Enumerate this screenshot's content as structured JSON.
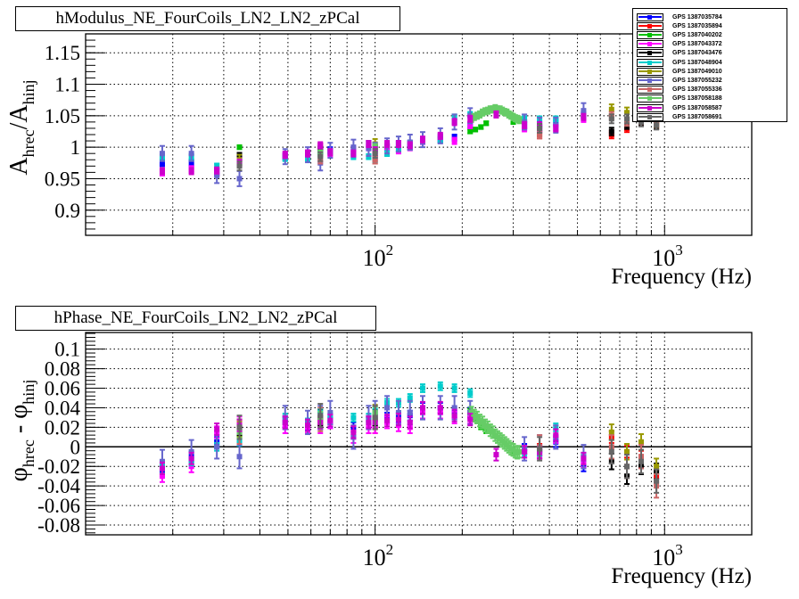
{
  "chart_data": [
    {
      "type": "scatter",
      "title": "hModulus_NE_FourCoils_LN2_LN2_zPCal",
      "xlabel": "Frequency (Hz)",
      "ylabel": "A_hrec/A_hinj",
      "ylabel_parts": {
        "main": "A",
        "sub1": "hrec",
        "slash": "/A",
        "sub2": "hinj"
      },
      "xscale": "log",
      "xlim": [
        10,
        2000
      ],
      "ylim": [
        0.86,
        1.18
      ],
      "yticks": [
        0.9,
        0.95,
        1,
        1.05,
        1.1,
        1.15
      ],
      "ytick_labels": [
        "0.9",
        "0.95",
        "1",
        "1.05",
        "1.1",
        "1.15"
      ],
      "xtick_labels": [
        {
          "value": 100,
          "base": "10",
          "exp": "2"
        },
        {
          "value": 1000,
          "base": "10",
          "exp": "3"
        }
      ],
      "grid": true,
      "key": "m"
    },
    {
      "type": "scatter",
      "title": "hPhase_NE_FourCoils_LN2_LN2_zPCal",
      "xlabel": "Frequency (Hz)",
      "ylabel": "φ_hrec - φ_hinj",
      "ylabel_parts": {
        "main": "φ",
        "sub1": "hrec",
        "slash": " - φ",
        "sub2": "hinj"
      },
      "xscale": "log",
      "xlim": [
        10,
        2000
      ],
      "ylim": [
        -0.09,
        0.117
      ],
      "yticks": [
        -0.08,
        -0.06,
        -0.04,
        -0.02,
        0,
        0.02,
        0.04,
        0.06,
        0.08,
        0.1
      ],
      "ytick_labels": [
        "-0.08",
        "-0.06",
        "-0.04",
        "-0.02",
        "0",
        "0.02",
        "0.04",
        "0.06",
        "0.08",
        "0.1"
      ],
      "xtick_labels": [
        {
          "value": 100,
          "base": "10",
          "exp": "2"
        },
        {
          "value": 1000,
          "base": "10",
          "exp": "3"
        }
      ],
      "grid": true,
      "zero_line": true,
      "key": "p"
    }
  ],
  "legend": {
    "placement": "top-right",
    "series_names": [
      "GPS 1387035784",
      "GPS 1387035894",
      "GPS 1387040202",
      "GPS 1387043372",
      "GPS 1387043476",
      "GPS 1387048904",
      "GPS 1387049010",
      "GPS 1387055232",
      "GPS 1387055336",
      "GPS 1387058188",
      "GPS 1387058587",
      "GPS 1387058691"
    ]
  },
  "series": [
    {
      "name": "GPS 1387035784",
      "color": "#0000ff",
      "err_m": 0.005,
      "err_p": 0.005,
      "points": [
        [
          18.4,
          0.975,
          -0.025
        ],
        [
          23.2,
          0.975,
          -0.01
        ],
        [
          28.4,
          0.96,
          0.005
        ],
        [
          34,
          0.985,
          0.01
        ],
        [
          48.9,
          0.985,
          0.025
        ],
        [
          58.5,
          0.99,
          0.022
        ],
        [
          64.7,
          0.99,
          0.03
        ],
        [
          70,
          0.995,
          0.025
        ],
        [
          84.2,
          0.99,
          0.02
        ],
        [
          95,
          1.005,
          0.025
        ],
        [
          100,
          0.99,
          0.028
        ],
        [
          110,
          1.0,
          0.03
        ],
        [
          120.5,
          1.005,
          0.03
        ],
        [
          132,
          1.005,
          0.032
        ],
        [
          146,
          1.01,
          0.04
        ],
        [
          168,
          1.012,
          0.04
        ],
        [
          188,
          1.015,
          0.035
        ],
        [
          213,
          1.035,
          0.035
        ],
        [
          328,
          1.035,
          -0.002
        ],
        [
          370,
          1.03,
          -0.004
        ],
        [
          421,
          1.04,
          0.005
        ],
        [
          525,
          1.05,
          -0.02
        ]
      ]
    },
    {
      "name": "GPS 1387035894",
      "color": "#ff0000",
      "err_m": 0.006,
      "err_p": 0.006,
      "points": [
        [
          64.7,
          1.0,
          0.025
        ],
        [
          100,
          0.98,
          0.02
        ],
        [
          370,
          1.02,
          -0.003
        ],
        [
          656,
          1.02,
          0.01
        ],
        [
          741,
          1.03,
          -0.005
        ],
        [
          830,
          1.04,
          -0.01
        ],
        [
          937,
          1.035,
          -0.03
        ]
      ]
    },
    {
      "name": "GPS 1387040202",
      "color": "#00c000",
      "err_m": 0.003,
      "err_p": 0.004,
      "points": [
        [
          34,
          1.0,
          0.015
        ],
        [
          64.7,
          0.995,
          0.025
        ],
        [
          100,
          1.0,
          0.025
        ],
        [
          213,
          1.025,
          0.035
        ],
        [
          222,
          1.028,
          0.03
        ],
        [
          232,
          1.032,
          0.022
        ],
        [
          242,
          1.038,
          0.018
        ],
        [
          300,
          1.04,
          -0.005
        ]
      ]
    },
    {
      "name": "GPS 1387043372",
      "color": "#ff00ff",
      "err_m": 0.005,
      "err_p": 0.006,
      "points": [
        [
          18.4,
          0.96,
          -0.03
        ],
        [
          23.2,
          0.965,
          -0.02
        ],
        [
          28.4,
          0.96,
          0.015
        ],
        [
          34,
          0.98,
          0.025
        ],
        [
          48.9,
          0.985,
          0.02
        ],
        [
          58.5,
          0.99,
          0.02
        ],
        [
          64.7,
          1.0,
          0.02
        ],
        [
          70,
          0.99,
          0.025
        ],
        [
          84.2,
          0.995,
          0.01
        ],
        [
          95,
          1.0,
          0.02
        ],
        [
          100,
          0.985,
          0.02
        ],
        [
          110,
          1.0,
          0.025
        ],
        [
          120.5,
          0.995,
          0.022
        ],
        [
          132,
          1.0,
          0.02
        ],
        [
          146,
          1.01,
          0.035
        ],
        [
          168,
          1.015,
          0.035
        ],
        [
          188,
          1.01,
          0.03
        ],
        [
          213,
          1.035,
          0.03
        ],
        [
          328,
          1.03,
          -0.005
        ],
        [
          370,
          1.03,
          -0.005
        ],
        [
          421,
          1.03,
          0.01
        ],
        [
          525,
          1.045,
          -0.015
        ]
      ]
    },
    {
      "name": "GPS 1387043476",
      "color": "#000000",
      "err_m": 0.006,
      "err_p": 0.008,
      "points": [
        [
          34,
          0.985,
          0.02
        ],
        [
          64.7,
          0.995,
          0.03
        ],
        [
          100,
          1.0,
          0.03
        ],
        [
          656,
          1.025,
          -0.015
        ],
        [
          741,
          1.035,
          -0.03
        ],
        [
          830,
          1.04,
          -0.02
        ],
        [
          937,
          1.035,
          -0.025
        ]
      ]
    },
    {
      "name": "GPS 1387048904",
      "color": "#00cccc",
      "err_m": 0.004,
      "err_p": 0.004,
      "points": [
        [
          18.4,
          0.985,
          -0.02
        ],
        [
          23.2,
          0.985,
          -0.015
        ],
        [
          28.4,
          0.97,
          0.0
        ],
        [
          34,
          0.975,
          0.005
        ],
        [
          48.9,
          0.982,
          0.03
        ],
        [
          58.5,
          0.982,
          0.025
        ],
        [
          64.7,
          0.99,
          0.035
        ],
        [
          70,
          0.993,
          0.03
        ],
        [
          84.2,
          0.985,
          0.03
        ],
        [
          95,
          0.985,
          0.03
        ],
        [
          100,
          0.98,
          0.035
        ],
        [
          110,
          0.99,
          0.045
        ],
        [
          120.5,
          0.997,
          0.045
        ],
        [
          132,
          1.0,
          0.05
        ],
        [
          146,
          1.01,
          0.06
        ],
        [
          168,
          1.012,
          0.062
        ],
        [
          188,
          1.048,
          0.06
        ],
        [
          213,
          1.052,
          0.055
        ],
        [
          328,
          1.045,
          -0.005
        ],
        [
          370,
          1.045,
          -0.005
        ],
        [
          421,
          1.045,
          0.02
        ],
        [
          525,
          1.052,
          -0.01
        ]
      ]
    },
    {
      "name": "GPS 1387049010",
      "color": "#999900",
      "err_m": 0.008,
      "err_p": 0.008,
      "points": [
        [
          34,
          0.98,
          0.018
        ],
        [
          100,
          1.005,
          0.035
        ],
        [
          656,
          1.06,
          0.015
        ],
        [
          741,
          1.055,
          -0.005
        ],
        [
          830,
          1.05,
          0.005
        ],
        [
          937,
          1.04,
          -0.02
        ]
      ]
    },
    {
      "name": "GPS 1387055232",
      "color": "#6666cc",
      "err_m": 0.012,
      "err_p": 0.012,
      "points": [
        [
          18.4,
          0.99,
          -0.015
        ],
        [
          23.2,
          0.99,
          -0.005
        ],
        [
          28.4,
          0.955,
          0.0
        ],
        [
          34,
          0.95,
          -0.01
        ],
        [
          48.9,
          0.985,
          0.03
        ],
        [
          58.5,
          0.988,
          0.025
        ],
        [
          64.7,
          0.975,
          0.03
        ],
        [
          70,
          0.995,
          0.035
        ],
        [
          84.2,
          1.0,
          0.01
        ],
        [
          95,
          0.998,
          0.03
        ],
        [
          100,
          0.995,
          0.035
        ],
        [
          110,
          1.002,
          0.04
        ],
        [
          120.5,
          1.005,
          0.035
        ],
        [
          132,
          1.008,
          0.035
        ],
        [
          146,
          1.012,
          0.04
        ],
        [
          168,
          1.018,
          0.04
        ],
        [
          188,
          1.04,
          0.04
        ],
        [
          213,
          1.05,
          0.035
        ],
        [
          328,
          1.04,
          -0.002
        ],
        [
          370,
          1.035,
          0.0
        ],
        [
          421,
          1.035,
          0.01
        ],
        [
          525,
          1.058,
          -0.01
        ]
      ]
    },
    {
      "name": "GPS 1387055336",
      "color": "#cc6666",
      "err_m": 0.006,
      "err_p": 0.012,
      "points": [
        [
          34,
          0.975,
          0.015
        ],
        [
          64.7,
          0.98,
          0.028
        ],
        [
          100,
          0.98,
          0.03
        ],
        [
          370,
          1.02,
          0.0
        ],
        [
          656,
          1.05,
          0.0
        ],
        [
          741,
          1.04,
          -0.02
        ],
        [
          830,
          1.045,
          -0.01
        ],
        [
          937,
          1.04,
          -0.04
        ]
      ]
    },
    {
      "name": "GPS 1387058188",
      "color": "#66cc66",
      "err_m": 0.005,
      "err_p": 0.006,
      "points": [
        [
          34,
          0.975,
          0.015
        ],
        [
          64.7,
          0.99,
          0.03
        ],
        [
          100,
          1.0,
          0.035
        ],
        [
          215,
          1.045,
          0.035
        ],
        [
          220,
          1.048,
          0.032
        ],
        [
          225,
          1.05,
          0.03
        ],
        [
          230,
          1.052,
          0.027
        ],
        [
          235,
          1.055,
          0.025
        ],
        [
          240,
          1.057,
          0.022
        ],
        [
          245,
          1.058,
          0.02
        ],
        [
          250,
          1.06,
          0.017
        ],
        [
          255,
          1.06,
          0.015
        ],
        [
          260,
          1.062,
          0.012
        ],
        [
          265,
          1.06,
          0.01
        ],
        [
          270,
          1.06,
          0.008
        ],
        [
          275,
          1.058,
          0.006
        ],
        [
          280,
          1.056,
          0.004
        ],
        [
          285,
          1.055,
          0.002
        ],
        [
          290,
          1.052,
          0.0
        ],
        [
          295,
          1.05,
          -0.002
        ],
        [
          300,
          1.048,
          -0.003
        ],
        [
          305,
          1.046,
          -0.005
        ],
        [
          310,
          1.045,
          -0.006
        ],
        [
          315,
          1.043,
          -0.005
        ]
      ]
    },
    {
      "name": "GPS 1387058587",
      "color": "#cc00cc",
      "err_m": 0.005,
      "err_p": 0.006,
      "points": [
        [
          18.4,
          0.962,
          -0.022
        ],
        [
          23.2,
          0.962,
          -0.012
        ],
        [
          28.4,
          0.963,
          0.018
        ],
        [
          34,
          0.975,
          0.022
        ],
        [
          48.9,
          0.988,
          0.025
        ],
        [
          58.5,
          0.99,
          0.022
        ],
        [
          64.7,
          1.003,
          0.025
        ],
        [
          70,
          0.992,
          0.027
        ],
        [
          84.2,
          0.99,
          0.015
        ],
        [
          95,
          1.005,
          0.025
        ],
        [
          100,
          0.995,
          0.025
        ],
        [
          110,
          1.005,
          0.027
        ],
        [
          120.5,
          1.005,
          0.028
        ],
        [
          132,
          1.003,
          0.025
        ],
        [
          146,
          1.012,
          0.04
        ],
        [
          168,
          1.018,
          0.04
        ],
        [
          188,
          1.04,
          0.032
        ],
        [
          213,
          1.045,
          0.028
        ],
        [
          262,
          1.052,
          -0.008
        ],
        [
          328,
          1.035,
          -0.005
        ],
        [
          370,
          1.035,
          -0.006
        ],
        [
          421,
          1.03,
          0.012
        ],
        [
          525,
          1.048,
          -0.012
        ]
      ]
    },
    {
      "name": "GPS 1387058691",
      "color": "#666666",
      "err_m": 0.007,
      "err_p": 0.012,
      "points": [
        [
          34,
          0.97,
          0.02
        ],
        [
          64.7,
          0.985,
          0.032
        ],
        [
          100,
          0.99,
          0.03
        ],
        [
          370,
          1.03,
          -0.002
        ],
        [
          656,
          1.045,
          -0.005
        ],
        [
          741,
          1.045,
          -0.02
        ],
        [
          830,
          1.04,
          -0.015
        ],
        [
          937,
          1.035,
          -0.035
        ]
      ]
    }
  ]
}
